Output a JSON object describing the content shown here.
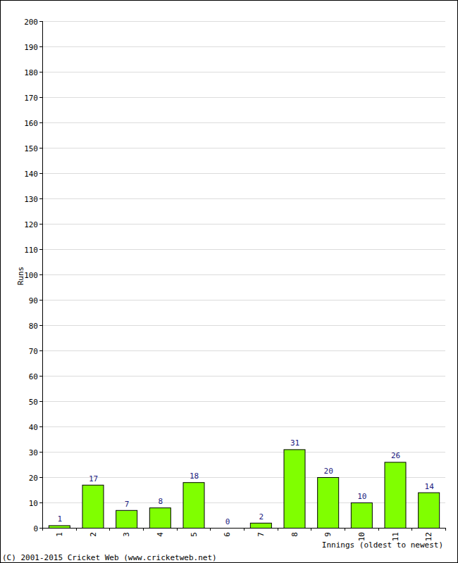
{
  "chart_data": {
    "type": "bar",
    "x_label": "Innings (oldest to newest)",
    "y_label": "Runs",
    "annotations": [
      "(C) 2001-2015 Cricket Web (www.cricketweb.net)"
    ],
    "categories": [
      "1",
      "2",
      "3",
      "4",
      "5",
      "6",
      "7",
      "8",
      "9",
      "10",
      "11",
      "12"
    ],
    "values": [
      1,
      17,
      7,
      8,
      18,
      0,
      2,
      31,
      20,
      10,
      26,
      14
    ],
    "color": "#80ff00",
    "ylim": [
      0,
      200
    ],
    "yticks": [
      0,
      10,
      20,
      30,
      40,
      50,
      60,
      70,
      80,
      90,
      100,
      110,
      120,
      130,
      140,
      150,
      160,
      170,
      180,
      190,
      200
    ],
    "grid": true,
    "data_labels": true
  }
}
